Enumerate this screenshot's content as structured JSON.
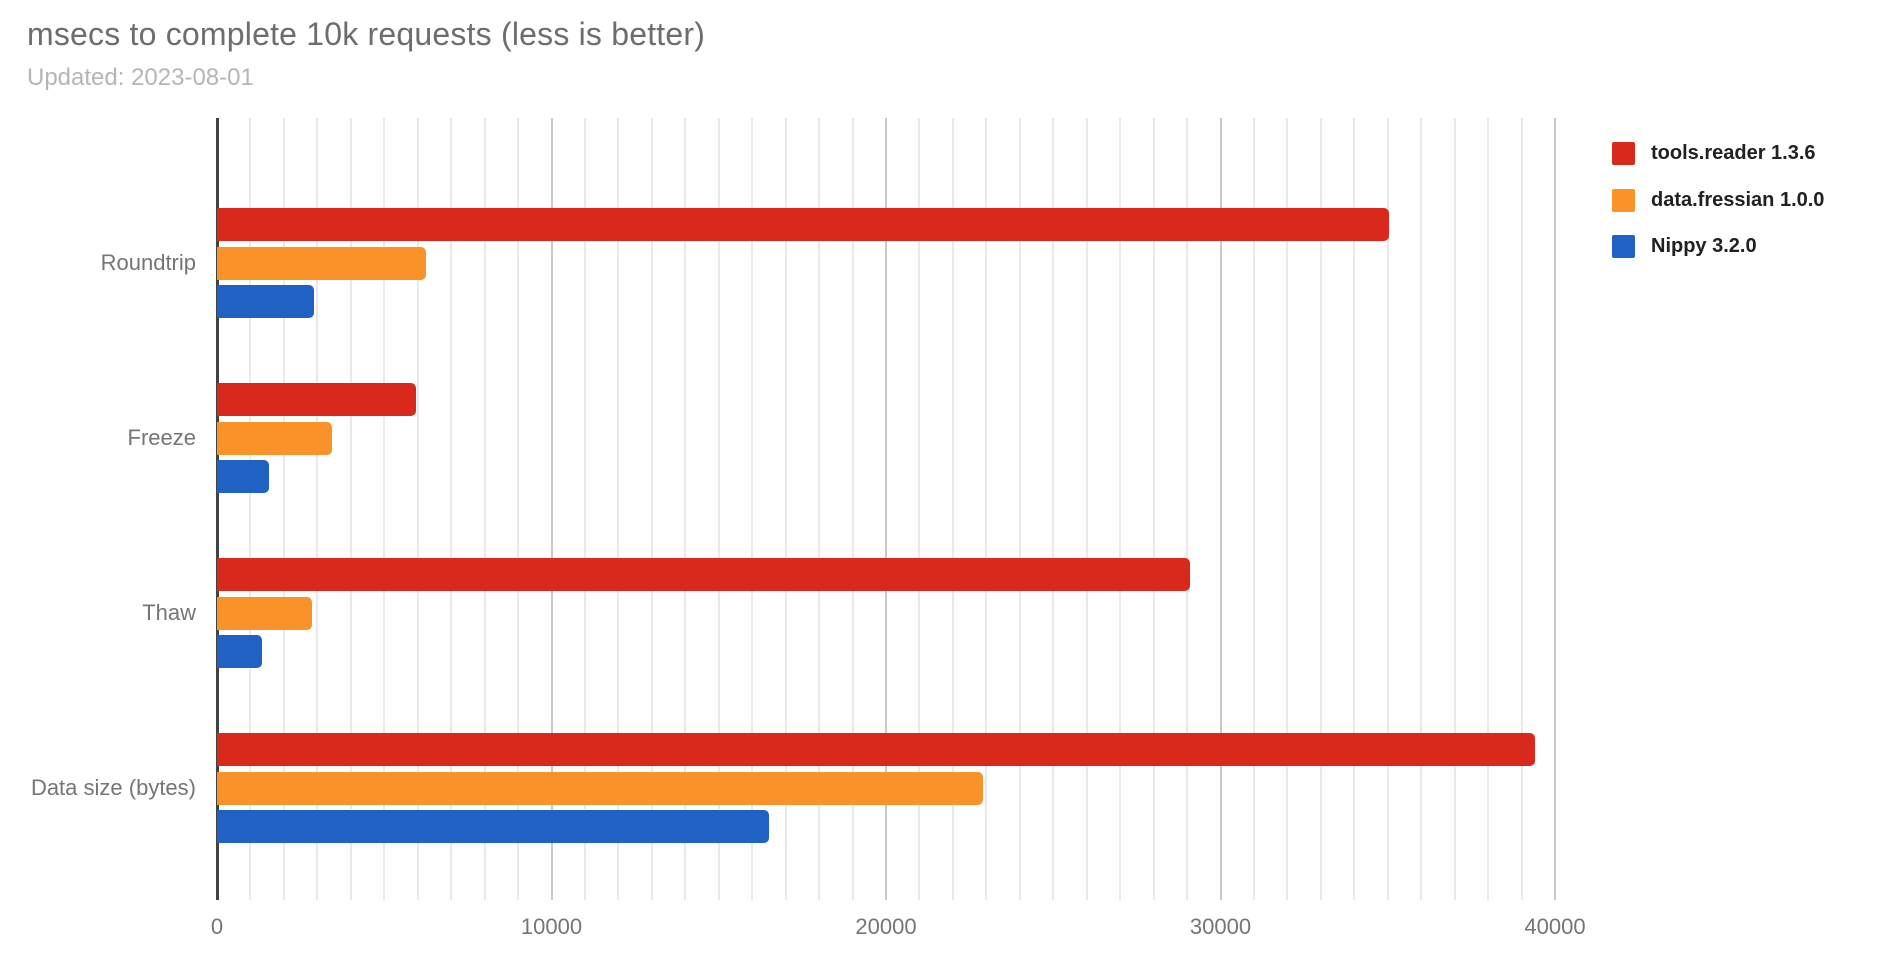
{
  "header": {
    "title": "msecs to complete 10k requests (less is better)",
    "subtitle": "Updated: 2023-08-01"
  },
  "chart_data": {
    "type": "bar",
    "orientation": "horizontal",
    "title": "msecs to complete 10k requests (less is better)",
    "subtitle": "Updated: 2023-08-01",
    "categories": [
      "Roundtrip",
      "Freeze",
      "Thaw",
      "Data size (bytes)"
    ],
    "series": [
      {
        "name": "tools.reader 1.3.6",
        "color": "#d8291c",
        "values": [
          35050,
          5950,
          29100,
          39400
        ]
      },
      {
        "name": "data.fressian 1.0.0",
        "color": "#f89229",
        "values": [
          6250,
          3450,
          2850,
          22900
        ]
      },
      {
        "name": "Nippy 3.2.0",
        "color": "#2061c4",
        "values": [
          2900,
          1550,
          1350,
          16500
        ]
      }
    ],
    "x_axis": {
      "min": 0,
      "max": 40750,
      "tick_values": [
        0,
        10000,
        20000,
        30000,
        40000
      ],
      "tick_labels": [
        "0",
        "10000",
        "20000",
        "30000",
        "40000"
      ],
      "minor_gridline_interval": 1000,
      "major_gridline_interval": 10000
    },
    "grid": true,
    "legend_position": "right"
  }
}
